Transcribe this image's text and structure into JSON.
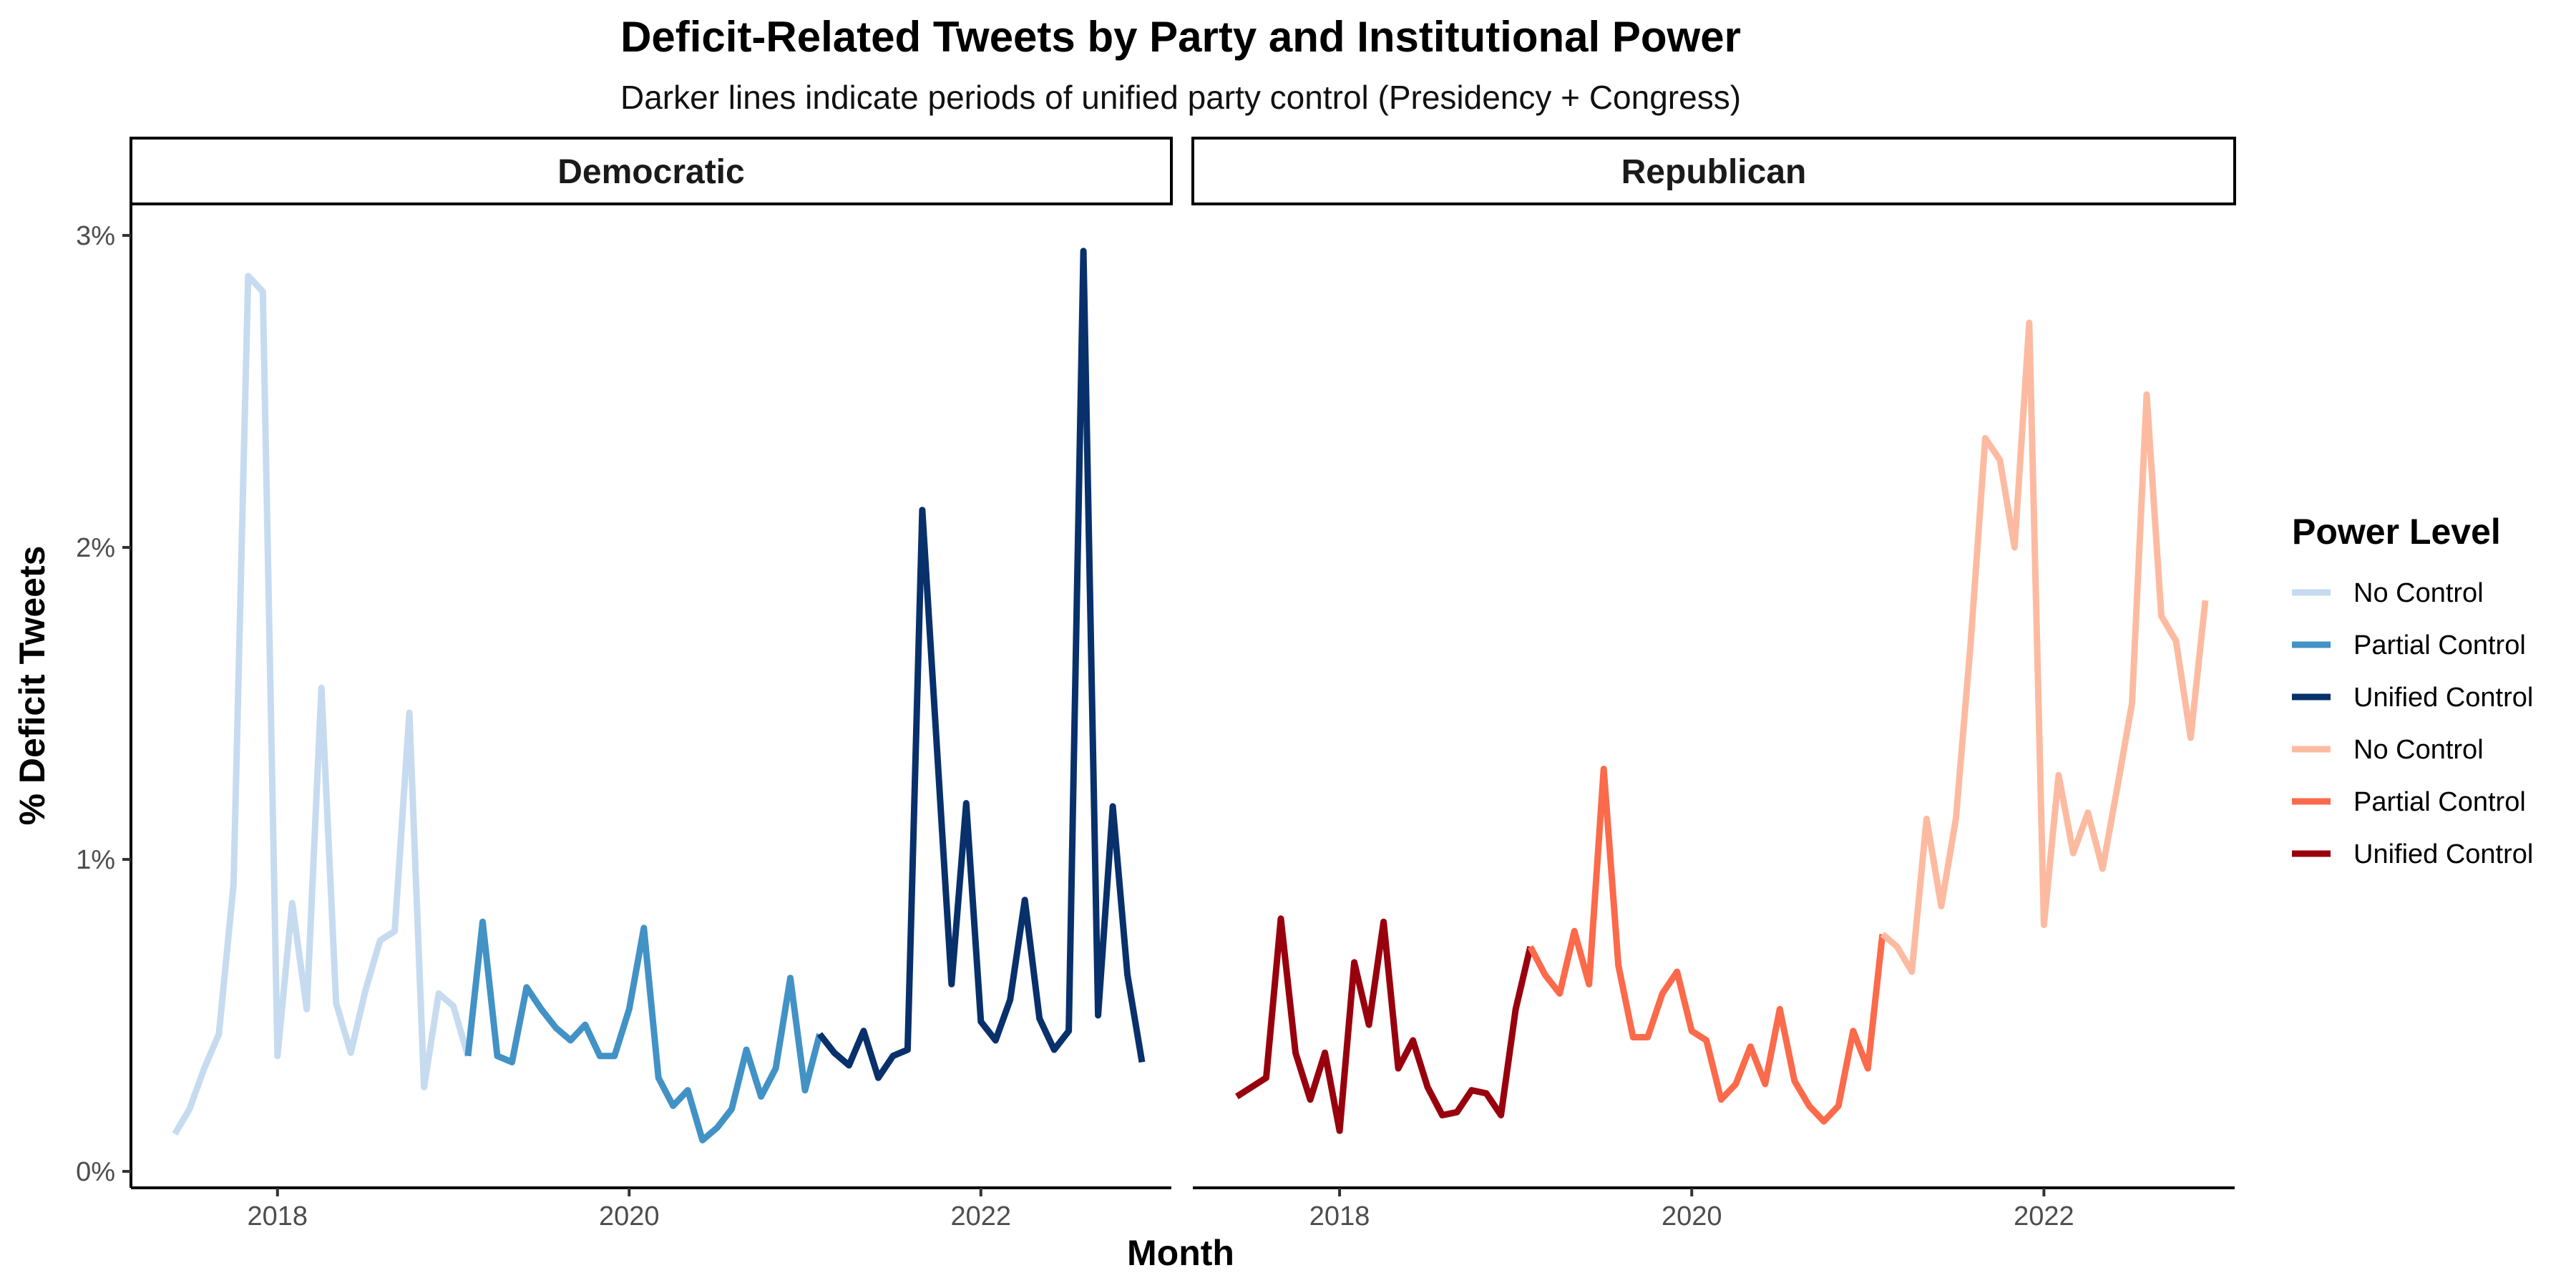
{
  "chart_data": {
    "type": "line",
    "title": "Deficit-Related Tweets by Party and Institutional Power",
    "subtitle": "Darker lines indicate periods of unified party control (Presidency + Congress)",
    "xlabel": "Month",
    "ylabel": "% Deficit Tweets",
    "x_ticks": [
      "2018",
      "2020",
      "2022"
    ],
    "y_ticks": [
      "0%",
      "1%",
      "2%",
      "3%"
    ],
    "ylim": [
      0,
      3.1
    ],
    "xlim": [
      "2017-03",
      "2023-02"
    ],
    "grid": false,
    "legend": {
      "title": "Power Level",
      "placement": "right",
      "entries": [
        {
          "label": "No Control",
          "color": "#c6dbef"
        },
        {
          "label": "Partial Control",
          "color": "#4292c6"
        },
        {
          "label": "Unified Control",
          "color": "#08306b"
        },
        {
          "label": "No Control",
          "color": "#fcbba1"
        },
        {
          "label": "Partial Control",
          "color": "#fb6a4a"
        },
        {
          "label": "Unified Control",
          "color": "#99000d"
        }
      ]
    },
    "panels": [
      {
        "name": "Democratic",
        "series": [
          {
            "name": "No Control",
            "color": "#c6dbef",
            "x": [
              "2017-06",
              "2017-07",
              "2017-08",
              "2017-09",
              "2017-10",
              "2017-11",
              "2017-12",
              "2018-01",
              "2018-02",
              "2018-03",
              "2018-04",
              "2018-05",
              "2018-06",
              "2018-07",
              "2018-08",
              "2018-09",
              "2018-10",
              "2018-11",
              "2018-12",
              "2019-01",
              "2019-02"
            ],
            "y": [
              0.12,
              0.2,
              0.33,
              0.44,
              0.92,
              2.87,
              2.82,
              0.37,
              0.86,
              0.52,
              1.55,
              0.54,
              0.38,
              0.58,
              0.74,
              0.77,
              1.47,
              0.27,
              0.57,
              0.53,
              0.37
            ]
          },
          {
            "name": "Partial Control",
            "color": "#4292c6",
            "x": [
              "2019-02",
              "2019-03",
              "2019-04",
              "2019-05",
              "2019-06",
              "2019-07",
              "2019-08",
              "2019-09",
              "2019-10",
              "2019-11",
              "2019-12",
              "2020-01",
              "2020-02",
              "2020-03",
              "2020-04",
              "2020-05",
              "2020-06",
              "2020-07",
              "2020-08",
              "2020-09",
              "2020-10",
              "2020-11",
              "2020-12",
              "2021-01",
              "2021-02"
            ],
            "y": [
              0.37,
              0.8,
              0.37,
              0.35,
              0.59,
              0.52,
              0.46,
              0.42,
              0.47,
              0.37,
              0.37,
              0.52,
              0.78,
              0.3,
              0.21,
              0.26,
              0.1,
              0.14,
              0.2,
              0.39,
              0.24,
              0.33,
              0.62,
              0.26,
              0.44
            ]
          },
          {
            "name": "Unified Control",
            "color": "#08306b",
            "x": [
              "2021-02",
              "2021-03",
              "2021-04",
              "2021-05",
              "2021-06",
              "2021-07",
              "2021-08",
              "2021-09",
              "2021-10",
              "2021-11",
              "2021-12",
              "2022-01",
              "2022-02",
              "2022-03",
              "2022-04",
              "2022-05",
              "2022-06",
              "2022-07",
              "2022-08",
              "2022-09",
              "2022-10",
              "2022-11",
              "2022-12"
            ],
            "y": [
              0.44,
              0.38,
              0.34,
              0.45,
              0.3,
              0.37,
              0.39,
              2.12,
              1.36,
              0.6,
              1.18,
              0.48,
              0.42,
              0.55,
              0.87,
              0.49,
              0.39,
              0.45,
              2.95,
              0.5,
              1.17,
              0.63,
              0.35
            ]
          }
        ]
      },
      {
        "name": "Republican",
        "series": [
          {
            "name": "Unified Control",
            "color": "#99000d",
            "x": [
              "2017-06",
              "2017-07",
              "2017-08",
              "2017-09",
              "2017-10",
              "2017-11",
              "2017-12",
              "2018-01",
              "2018-02",
              "2018-03",
              "2018-04",
              "2018-05",
              "2018-06",
              "2018-07",
              "2018-08",
              "2018-09",
              "2018-10",
              "2018-11",
              "2018-12",
              "2019-01",
              "2019-02"
            ],
            "y": [
              0.24,
              0.27,
              0.3,
              0.81,
              0.38,
              0.23,
              0.38,
              0.13,
              0.67,
              0.47,
              0.8,
              0.33,
              0.42,
              0.27,
              0.18,
              0.19,
              0.26,
              0.25,
              0.18,
              0.52,
              0.72
            ]
          },
          {
            "name": "Partial Control",
            "color": "#fb6a4a",
            "x": [
              "2019-02",
              "2019-03",
              "2019-04",
              "2019-05",
              "2019-06",
              "2019-07",
              "2019-08",
              "2019-09",
              "2019-10",
              "2019-11",
              "2019-12",
              "2020-01",
              "2020-02",
              "2020-03",
              "2020-04",
              "2020-05",
              "2020-06",
              "2020-07",
              "2020-08",
              "2020-09",
              "2020-10",
              "2020-11",
              "2020-12",
              "2021-01",
              "2021-02"
            ],
            "y": [
              0.72,
              0.63,
              0.57,
              0.77,
              0.6,
              1.29,
              0.66,
              0.43,
              0.43,
              0.57,
              0.64,
              0.45,
              0.42,
              0.23,
              0.28,
              0.4,
              0.28,
              0.52,
              0.29,
              0.21,
              0.16,
              0.21,
              0.45,
              0.33,
              0.76
            ]
          },
          {
            "name": "No Control",
            "color": "#fcbba1",
            "x": [
              "2021-02",
              "2021-03",
              "2021-04",
              "2021-05",
              "2021-06",
              "2021-07",
              "2021-08",
              "2021-09",
              "2021-10",
              "2021-11",
              "2021-12",
              "2022-01",
              "2022-02",
              "2022-03",
              "2022-04",
              "2022-05",
              "2022-06",
              "2022-07",
              "2022-08",
              "2022-09",
              "2022-10",
              "2022-11",
              "2022-12"
            ],
            "y": [
              0.76,
              0.72,
              0.64,
              1.13,
              0.85,
              1.13,
              1.69,
              2.35,
              2.28,
              2.0,
              2.72,
              0.79,
              1.27,
              1.02,
              1.15,
              0.97,
              1.23,
              1.5,
              2.49,
              1.78,
              1.7,
              1.39,
              1.83
            ]
          }
        ]
      }
    ]
  }
}
